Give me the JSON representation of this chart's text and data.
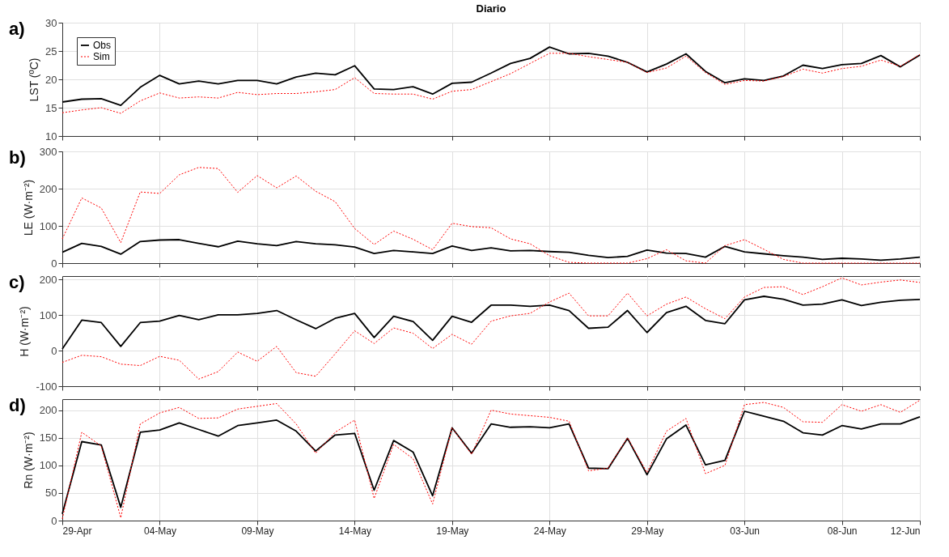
{
  "chart_data": [
    {
      "type": "line",
      "title": "Diario",
      "annotations": [
        "a)"
      ],
      "ylabel": "LST (ºC)",
      "grid": true,
      "legend": "top left",
      "tick_labels": "y",
      "x": [
        "--04-29",
        "--04-30",
        "--05-01",
        "--05-02",
        "--05-03",
        "--05-04",
        "--05-05",
        "--05-06",
        "--05-07",
        "--05-08",
        "--05-09",
        "--05-10",
        "--05-11",
        "--05-12",
        "--05-13",
        "--05-14",
        "--05-15",
        "--05-16",
        "--05-17",
        "--05-18",
        "--05-19",
        "--05-20",
        "--05-21",
        "--05-22",
        "--05-23",
        "--05-24",
        "--05-25",
        "--05-26",
        "--05-27",
        "--05-28",
        "--05-29",
        "--05-30",
        "--05-31",
        "--06-01",
        "--06-02",
        "--06-03",
        "--06-04",
        "--06-05",
        "--06-06",
        "--06-07",
        "--06-08",
        "--06-09",
        "--06-10",
        "--06-11",
        "--06-12"
      ],
      "xlim": [
        "--04-29",
        "--06-12"
      ],
      "xticks": [
        {
          "value": "--04-29",
          "label": null
        },
        {
          "value": "--05-04",
          "label": null
        },
        {
          "value": "--05-09",
          "label": null
        },
        {
          "value": "--05-14",
          "label": null
        },
        {
          "value": "--05-19",
          "label": null
        },
        {
          "value": "--05-24",
          "label": null
        },
        {
          "value": "--05-29",
          "label": null
        },
        {
          "value": "--06-03",
          "label": null
        },
        {
          "value": "--06-08",
          "label": null
        },
        {
          "value": "--06-12",
          "label": null
        }
      ],
      "ylim": [
        10,
        30
      ],
      "yticks": [
        10,
        15,
        20,
        25,
        30
      ],
      "series": [
        {
          "name": "Obs",
          "color": "#000000",
          "line_style": "solid",
          "values": [
            16,
            16.5,
            16.6,
            15.4,
            18.6,
            20.7,
            19.2,
            19.7,
            19.2,
            19.8,
            19.8,
            19.2,
            20.4,
            21.1,
            20.8,
            22.4,
            18.3,
            18.2,
            18.7,
            17.4,
            19.3,
            19.5,
            21.1,
            22.8,
            23.7,
            25.7,
            24.5,
            24.6,
            24.1,
            23,
            21.3,
            22.7,
            24.5,
            21.4,
            19.4,
            20.1,
            19.8,
            20.6,
            22.5,
            21.9,
            22.6,
            22.8,
            24.2,
            22.2,
            24.3
          ]
        },
        {
          "name": "Sim",
          "color": "#ff0000",
          "line_style": "dotted",
          "values": [
            14.1,
            14.6,
            15,
            14,
            16.2,
            17.6,
            16.7,
            16.9,
            16.7,
            17.7,
            17.3,
            17.5,
            17.5,
            17.8,
            18.2,
            20.3,
            17.5,
            17.4,
            17.4,
            16.5,
            17.9,
            18.2,
            19.6,
            21,
            22.8,
            24.6,
            24.6,
            24,
            23.5,
            23,
            21.2,
            22,
            24.1,
            21.2,
            19.1,
            19.8,
            19.7,
            20.5,
            21.8,
            21.1,
            21.9,
            22.3,
            23.4,
            22.3,
            24.4
          ]
        }
      ]
    },
    {
      "type": "line",
      "annotations": [
        "b)"
      ],
      "ylabel": "LE (W·m⁻²)",
      "grid": true,
      "tick_labels": "y",
      "x": [
        "--04-29",
        "--04-30",
        "--05-01",
        "--05-02",
        "--05-03",
        "--05-04",
        "--05-05",
        "--05-06",
        "--05-07",
        "--05-08",
        "--05-09",
        "--05-10",
        "--05-11",
        "--05-12",
        "--05-13",
        "--05-14",
        "--05-15",
        "--05-16",
        "--05-17",
        "--05-18",
        "--05-19",
        "--05-20",
        "--05-21",
        "--05-22",
        "--05-23",
        "--05-24",
        "--05-25",
        "--05-26",
        "--05-27",
        "--05-28",
        "--05-29",
        "--05-30",
        "--05-31",
        "--06-01",
        "--06-02",
        "--06-03",
        "--06-04",
        "--06-05",
        "--06-06",
        "--06-07",
        "--06-08",
        "--06-09",
        "--06-10",
        "--06-11",
        "--06-12"
      ],
      "xlim": [
        "--04-29",
        "--06-12"
      ],
      "xticks": [
        {
          "value": "--04-29",
          "label": null
        },
        {
          "value": "--05-04",
          "label": null
        },
        {
          "value": "--05-09",
          "label": null
        },
        {
          "value": "--05-14",
          "label": null
        },
        {
          "value": "--05-19",
          "label": null
        },
        {
          "value": "--05-24",
          "label": null
        },
        {
          "value": "--05-29",
          "label": null
        },
        {
          "value": "--06-03",
          "label": null
        },
        {
          "value": "--06-08",
          "label": null
        },
        {
          "value": "--06-12",
          "label": null
        }
      ],
      "ylim": [
        0,
        300
      ],
      "yticks": [
        0,
        100,
        200,
        300
      ],
      "series": [
        {
          "color": "#000000",
          "line_style": "solid",
          "values": [
            29,
            53,
            45,
            24,
            58,
            62,
            63,
            53,
            44,
            59,
            52,
            47,
            58,
            52,
            49,
            43,
            26,
            34,
            30,
            26,
            46,
            34,
            41,
            33,
            34,
            31,
            29,
            21,
            15,
            18,
            35,
            27,
            26,
            16,
            45,
            30,
            25,
            20,
            16,
            10,
            13,
            11,
            8,
            11,
            16
          ]
        },
        {
          "color": "#ff0000",
          "line_style": "dotted",
          "values": [
            65,
            175,
            148,
            55,
            191,
            187,
            237,
            257,
            254,
            190,
            235,
            202,
            234,
            193,
            165,
            93,
            50,
            86,
            64,
            36,
            107,
            98,
            95,
            65,
            52,
            20,
            2,
            0,
            0,
            0,
            12,
            36,
            6,
            0,
            47,
            63,
            37,
            10,
            0,
            0,
            0,
            0,
            0,
            0,
            0
          ]
        }
      ]
    },
    {
      "type": "line",
      "annotations": [
        "c)"
      ],
      "ylabel": "H (W·m⁻²)",
      "grid": true,
      "tick_labels": "y",
      "x": [
        "--04-29",
        "--04-30",
        "--05-01",
        "--05-02",
        "--05-03",
        "--05-04",
        "--05-05",
        "--05-06",
        "--05-07",
        "--05-08",
        "--05-09",
        "--05-10",
        "--05-11",
        "--05-12",
        "--05-13",
        "--05-14",
        "--05-15",
        "--05-16",
        "--05-17",
        "--05-18",
        "--05-19",
        "--05-20",
        "--05-21",
        "--05-22",
        "--05-23",
        "--05-24",
        "--05-25",
        "--05-26",
        "--05-27",
        "--05-28",
        "--05-29",
        "--05-30",
        "--05-31",
        "--06-01",
        "--06-02",
        "--06-03",
        "--06-04",
        "--06-05",
        "--06-06",
        "--06-07",
        "--06-08",
        "--06-09",
        "--06-10",
        "--06-11",
        "--06-12"
      ],
      "xlim": [
        "--04-29",
        "--06-12"
      ],
      "xticks": [
        {
          "value": "--04-29",
          "label": null
        },
        {
          "value": "--05-04",
          "label": null
        },
        {
          "value": "--05-09",
          "label": null
        },
        {
          "value": "--05-14",
          "label": null
        },
        {
          "value": "--05-19",
          "label": null
        },
        {
          "value": "--05-24",
          "label": null
        },
        {
          "value": "--05-29",
          "label": null
        },
        {
          "value": "--06-03",
          "label": null
        },
        {
          "value": "--06-08",
          "label": null
        },
        {
          "value": "--06-12",
          "label": null
        }
      ],
      "ylim": [
        -100,
        210
      ],
      "yticks": [
        -100,
        0,
        100,
        200
      ],
      "series": [
        {
          "color": "#000000",
          "line_style": "solid",
          "values": [
            5,
            86,
            79,
            12,
            79,
            83,
            99,
            87,
            101,
            101,
            105,
            113,
            87,
            62,
            91,
            105,
            37,
            97,
            82,
            29,
            97,
            80,
            128,
            128,
            125,
            128,
            113,
            63,
            66,
            113,
            51,
            107,
            125,
            85,
            76,
            143,
            153,
            145,
            128,
            131,
            143,
            127,
            136,
            142,
            144
          ]
        },
        {
          "color": "#ff0000",
          "line_style": "dotted",
          "values": [
            -33,
            -13,
            -17,
            -38,
            -42,
            -16,
            -27,
            -80,
            -59,
            -4,
            -30,
            12,
            -62,
            -72,
            -9,
            56,
            20,
            64,
            49,
            6,
            46,
            18,
            83,
            98,
            105,
            137,
            162,
            98,
            98,
            162,
            98,
            131,
            151,
            118,
            90,
            151,
            178,
            180,
            158,
            180,
            205,
            185,
            193,
            199,
            192
          ]
        }
      ]
    },
    {
      "type": "line",
      "annotations": [
        "d)"
      ],
      "ylabel": "Rn (W·m⁻²)",
      "grid": true,
      "x": [
        "--04-29",
        "--04-30",
        "--05-01",
        "--05-02",
        "--05-03",
        "--05-04",
        "--05-05",
        "--05-06",
        "--05-07",
        "--05-08",
        "--05-09",
        "--05-10",
        "--05-11",
        "--05-12",
        "--05-13",
        "--05-14",
        "--05-15",
        "--05-16",
        "--05-17",
        "--05-18",
        "--05-19",
        "--05-20",
        "--05-21",
        "--05-22",
        "--05-23",
        "--05-24",
        "--05-25",
        "--05-26",
        "--05-27",
        "--05-28",
        "--05-29",
        "--05-30",
        "--05-31",
        "--06-01",
        "--06-02",
        "--06-03",
        "--06-04",
        "--06-05",
        "--06-06",
        "--06-07",
        "--06-08",
        "--06-09",
        "--06-10",
        "--06-11",
        "--06-12"
      ],
      "xlim": [
        "--04-29",
        "--06-12"
      ],
      "xticks": [
        {
          "value": "--04-29",
          "label": "29-Apr"
        },
        {
          "value": "--05-04",
          "label": "04-May"
        },
        {
          "value": "--05-09",
          "label": "09-May"
        },
        {
          "value": "--05-14",
          "label": "14-May"
        },
        {
          "value": "--05-19",
          "label": "19-May"
        },
        {
          "value": "--05-24",
          "label": "24-May"
        },
        {
          "value": "--05-29",
          "label": "29-May"
        },
        {
          "value": "--06-03",
          "label": "03-Jun"
        },
        {
          "value": "--06-08",
          "label": "08-Jun"
        },
        {
          "value": "--06-12",
          "label": "12-Jun"
        }
      ],
      "ylim": [
        0,
        220
      ],
      "yticks": [
        0,
        50,
        100,
        150,
        200
      ],
      "series": [
        {
          "color": "#000000",
          "line_style": "solid",
          "values": [
            12,
            143,
            137,
            24,
            160,
            164,
            177,
            165,
            153,
            172,
            177,
            182,
            162,
            126,
            155,
            158,
            55,
            145,
            124,
            45,
            168,
            122,
            175,
            169,
            170,
            168,
            175,
            95,
            94,
            149,
            83,
            148,
            173,
            101,
            109,
            198,
            189,
            180,
            159,
            155,
            172,
            166,
            175,
            175,
            188
          ]
        },
        {
          "color": "#ff0000",
          "line_style": "dotted",
          "values": [
            3,
            160,
            135,
            5,
            175,
            195,
            205,
            185,
            186,
            202,
            207,
            212,
            175,
            122,
            160,
            182,
            40,
            138,
            112,
            30,
            168,
            120,
            200,
            193,
            190,
            187,
            180,
            90,
            95,
            150,
            87,
            162,
            185,
            85,
            100,
            210,
            214,
            205,
            179,
            178,
            210,
            198,
            210,
            196,
            218
          ]
        }
      ]
    }
  ]
}
